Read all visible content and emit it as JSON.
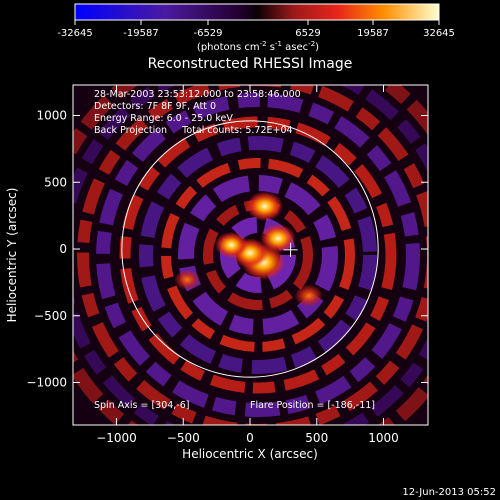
{
  "colorbar": {
    "ticks": [
      "-32645",
      "-19587",
      "-6529",
      "6529",
      "19587",
      "32645"
    ],
    "units_main": "(photons cm",
    "units_sup1": "-2",
    "units_mid1": " s",
    "units_sup2": "-1",
    "units_mid2": " asec",
    "units_sup3": "-2",
    "units_end": ")",
    "range": [
      -32645,
      32645
    ]
  },
  "image": {
    "title": "Reconstructed RHESSI Image",
    "info_lines": [
      "28-Mar-2003 23:53:12.000 to 23:58:46.000",
      "Detectors: 7F 8F 9F, Att 0",
      "Energy Range: 6.0 - 25.0 keV",
      "Back Projection     Total counts: 5.72E+04"
    ],
    "spin_axis": "Spin Axis = [304,-6]",
    "flare_position": "Flare Position = [-186,-11]",
    "timestamp": "12-Jun-2013 05:52"
  },
  "chart_data": {
    "type": "heatmap",
    "title": "Reconstructed RHESSI Image",
    "xlabel": "Heliocentric X (arcsec)",
    "ylabel": "Heliocentric Y (arcsec)",
    "xlim": [
      -1280,
      1280
    ],
    "ylim": [
      -1280,
      1280
    ],
    "x_ticks": [
      -1000,
      -500,
      0,
      500,
      1000
    ],
    "x_tick_labels": [
      "−1000",
      "−500",
      "0",
      "500",
      "1000"
    ],
    "y_ticks": [
      1000,
      500,
      0,
      -500,
      -1000
    ],
    "y_tick_labels": [
      "1000",
      "500",
      "0",
      "−500",
      "−1000"
    ],
    "solar_limb_radius": 960,
    "spin_axis_marker": [
      304,
      -6
    ],
    "hot_spots": [
      {
        "x": 100,
        "y": -100,
        "level": 1.0
      },
      {
        "x": 0,
        "y": -30,
        "level": 0.75
      },
      {
        "x": 210,
        "y": 80,
        "level": 0.7
      },
      {
        "x": -140,
        "y": 30,
        "level": 0.6
      },
      {
        "x": 110,
        "y": 320,
        "level": 0.75
      },
      {
        "x": 440,
        "y": -350,
        "level": 0.45
      },
      {
        "x": -470,
        "y": -230,
        "level": 0.35
      }
    ],
    "grid": false,
    "colormap": [
      "#0000ff",
      "#3c1a7a",
      "#5a1aa0",
      "#0a0005",
      "#aa1a1a",
      "#e8241a",
      "#ff9000",
      "#ffff60",
      "#ffffff"
    ]
  }
}
